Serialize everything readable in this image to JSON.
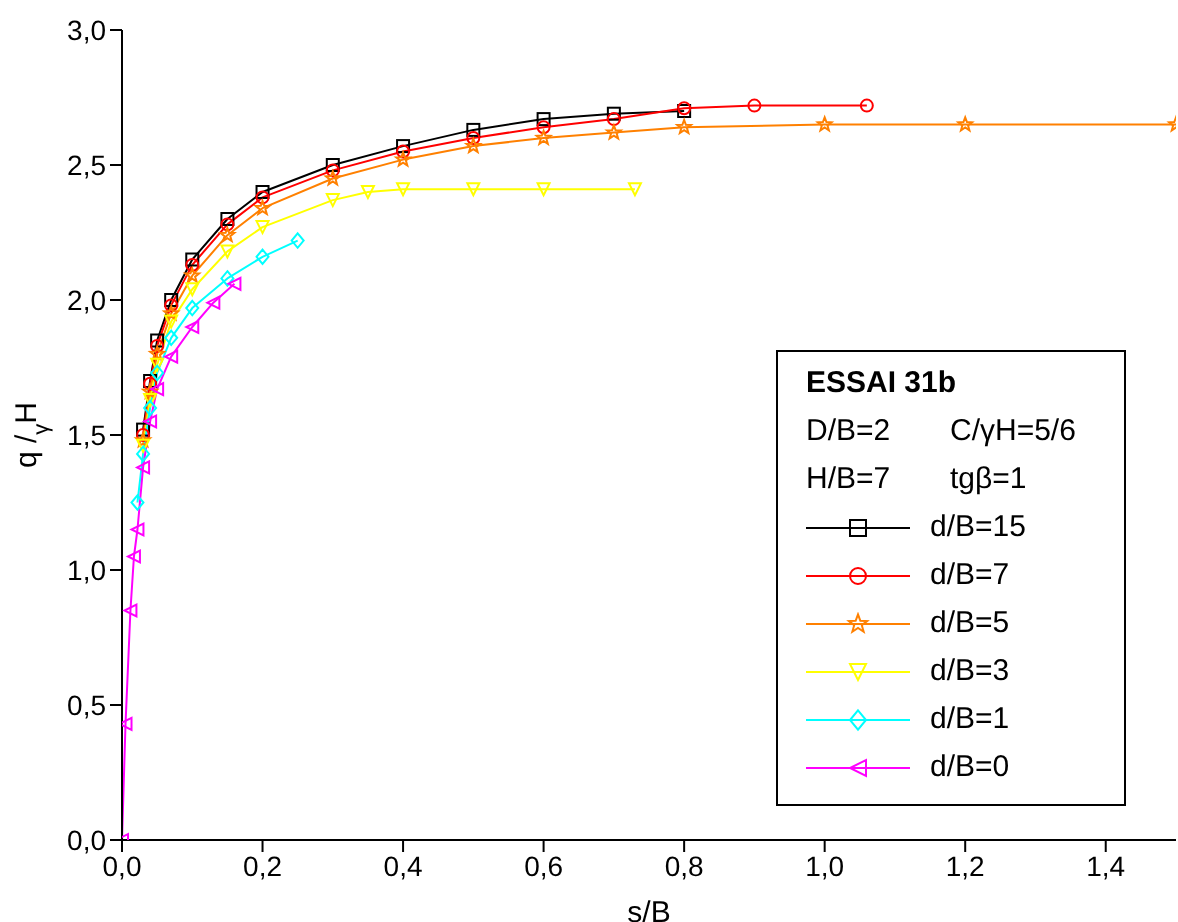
{
  "chart_data": {
    "type": "line",
    "xlabel": "s/B",
    "ylabel": "q /$_{γ}$H",
    "legend_title": "ESSAI 31b",
    "annotations": [
      "D/B=2",
      "C/γH=5/6",
      "H/B=7",
      "tgβ=1"
    ],
    "legend": "right",
    "grid": false,
    "xlim": [
      0,
      1.5
    ],
    "xticks": [
      {
        "value": 0,
        "label": "0,0"
      },
      {
        "value": 0.2,
        "label": "0,2"
      },
      {
        "value": 0.4,
        "label": "0,4"
      },
      {
        "value": 0.6,
        "label": "0,6"
      },
      {
        "value": 0.8,
        "label": "0,8"
      },
      {
        "value": 1.0,
        "label": "1,0"
      },
      {
        "value": 1.2,
        "label": "1,2"
      },
      {
        "value": 1.4,
        "label": "1,4"
      }
    ],
    "ylim": [
      0,
      3
    ],
    "yticks": [
      {
        "value": 0,
        "label": "0,0"
      },
      {
        "value": 0.5,
        "label": "0,5"
      },
      {
        "value": 1.0,
        "label": "1,0"
      },
      {
        "value": 1.5,
        "label": "1,5"
      },
      {
        "value": 2.0,
        "label": "2,0"
      },
      {
        "value": 2.5,
        "label": "2,5"
      },
      {
        "value": 3.0,
        "label": "3,0"
      }
    ],
    "series": [
      {
        "name": "d/B=15",
        "color": "#000000",
        "marker": "square",
        "x": [
          0.03,
          0.04,
          0.05,
          0.07,
          0.1,
          0.15,
          0.2,
          0.3,
          0.4,
          0.5,
          0.6,
          0.7,
          0.8
        ],
        "values": [
          1.52,
          1.7,
          1.85,
          2.0,
          2.15,
          2.3,
          2.4,
          2.5,
          2.57,
          2.63,
          2.67,
          2.69,
          2.7
        ]
      },
      {
        "name": "d/B=7",
        "color": "#ff0000",
        "marker": "circle",
        "x": [
          0.03,
          0.04,
          0.05,
          0.07,
          0.1,
          0.15,
          0.2,
          0.3,
          0.4,
          0.5,
          0.6,
          0.7,
          0.8,
          0.9,
          1.06
        ],
        "values": [
          1.5,
          1.69,
          1.83,
          1.98,
          2.13,
          2.28,
          2.38,
          2.48,
          2.55,
          2.6,
          2.64,
          2.67,
          2.71,
          2.72,
          2.72
        ]
      },
      {
        "name": "d/B=5",
        "color": "#ff8000",
        "marker": "star",
        "x": [
          0.03,
          0.04,
          0.05,
          0.07,
          0.1,
          0.15,
          0.2,
          0.3,
          0.4,
          0.5,
          0.6,
          0.7,
          0.8,
          1.0,
          1.2,
          1.5
        ],
        "values": [
          1.48,
          1.66,
          1.8,
          1.95,
          2.09,
          2.24,
          2.34,
          2.45,
          2.52,
          2.57,
          2.6,
          2.62,
          2.64,
          2.65,
          2.65,
          2.65
        ]
      },
      {
        "name": "d/B=3",
        "color": "#ffff00",
        "marker": "triangle-down",
        "x": [
          0.03,
          0.04,
          0.05,
          0.07,
          0.1,
          0.15,
          0.2,
          0.3,
          0.35,
          0.4,
          0.5,
          0.6,
          0.73
        ],
        "values": [
          1.46,
          1.63,
          1.76,
          1.92,
          2.04,
          2.18,
          2.27,
          2.37,
          2.4,
          2.41,
          2.41,
          2.41,
          2.41
        ]
      },
      {
        "name": "d/B=1",
        "color": "#00ffff",
        "marker": "diamond",
        "x": [
          0.022,
          0.03,
          0.04,
          0.05,
          0.07,
          0.1,
          0.15,
          0.2,
          0.25
        ],
        "values": [
          1.25,
          1.43,
          1.6,
          1.73,
          1.86,
          1.97,
          2.08,
          2.16,
          2.22
        ]
      },
      {
        "name": "d/B=0",
        "color": "#ff00ff",
        "marker": "triangle-left",
        "x": [
          0,
          0.005,
          0.012,
          0.017,
          0.022,
          0.03,
          0.04,
          0.05,
          0.07,
          0.1,
          0.13,
          0.16
        ],
        "values": [
          0,
          0.43,
          0.85,
          1.05,
          1.15,
          1.38,
          1.55,
          1.67,
          1.79,
          1.9,
          1.99,
          2.06
        ]
      }
    ]
  }
}
